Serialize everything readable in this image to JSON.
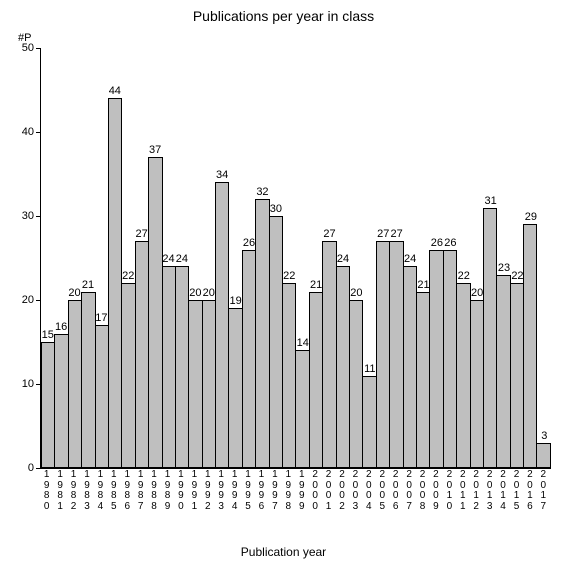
{
  "chart": {
    "type": "bar",
    "title": "Publications per year in class",
    "y_axis_label": "#P",
    "x_axis_label": "Publication year",
    "ylim": [
      0,
      50
    ],
    "yticks": [
      0,
      10,
      20,
      30,
      40,
      50
    ],
    "bar_color": "#bfbfbf",
    "bar_border_color": "#000000",
    "background_color": "#ffffff",
    "axis_color": "#000000",
    "title_fontsize": 14,
    "axis_label_fontsize": 12,
    "tick_fontsize": 11,
    "xtick_fontsize": 10,
    "value_label_fontsize": 11,
    "categories": [
      "1980",
      "1981",
      "1982",
      "1983",
      "1984",
      "1985",
      "1986",
      "1987",
      "1988",
      "1989",
      "1990",
      "1991",
      "1992",
      "1993",
      "1994",
      "1995",
      "1996",
      "1997",
      "1998",
      "1999",
      "2000",
      "2001",
      "2002",
      "2003",
      "2004",
      "2005",
      "2006",
      "2007",
      "2008",
      "2009",
      "2010",
      "2011",
      "2012",
      "2013",
      "2014",
      "2015",
      "2016",
      "2017"
    ],
    "values": [
      15,
      16,
      20,
      21,
      17,
      44,
      22,
      27,
      37,
      24,
      24,
      20,
      20,
      34,
      19,
      26,
      32,
      30,
      22,
      14,
      21,
      27,
      24,
      20,
      11,
      27,
      27,
      24,
      21,
      26,
      26,
      22,
      20,
      31,
      23,
      22,
      29,
      3
    ],
    "show_value_labels": true
  }
}
